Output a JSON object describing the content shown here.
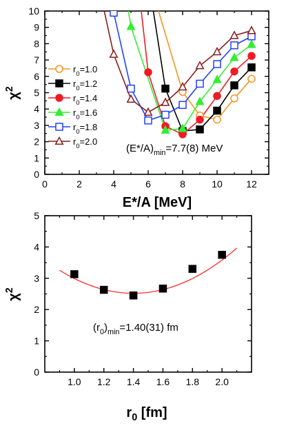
{
  "chart_data": [
    {
      "type": "line",
      "xlabel": "E*/A [MeV]",
      "ylabel": "χ2",
      "xlim": [
        0,
        13
      ],
      "ylim": [
        0,
        10
      ],
      "xticks": [
        0,
        2,
        4,
        6,
        8,
        10,
        12
      ],
      "yticks": [
        0,
        1,
        2,
        3,
        4,
        5,
        6,
        7,
        8,
        9,
        10
      ],
      "grid": false,
      "legend_position": "left",
      "annotation": "(E*/A)min=7.7(8) MeV",
      "series": [
        {
          "name": "r0=1.0",
          "color": "#f7941d",
          "marker": "circle-open",
          "x": [
            6.6,
            8,
            9,
            10,
            11,
            12
          ],
          "y": [
            10,
            5.05,
            3.6,
            3.35,
            4.65,
            5.85
          ]
        },
        {
          "name": "r0=1.2",
          "color": "#000000",
          "marker": "square-filled",
          "x": [
            6.3,
            7,
            8,
            9,
            10,
            11,
            12
          ],
          "y": [
            10,
            5.25,
            2.65,
            2.75,
            3.9,
            5.45,
            6.55
          ]
        },
        {
          "name": "r0=1.4",
          "color": "#ed1c24",
          "marker": "circle-filled",
          "x": [
            5.6,
            6,
            7,
            8,
            9,
            10,
            11,
            12
          ],
          "y": [
            10,
            6.25,
            2.95,
            2.45,
            3.35,
            4.8,
            6.3,
            7.25
          ]
        },
        {
          "name": "r0=1.6",
          "color": "#33ee33",
          "marker": "triangle-filled",
          "x": [
            4.85,
            5,
            7,
            8,
            9,
            10,
            11,
            12
          ],
          "y": [
            10,
            9.05,
            2.7,
            2.8,
            4.45,
            5.8,
            7.15,
            7.95
          ]
        },
        {
          "name": "r0=1.8",
          "color": "#1f3fff",
          "marker": "square-open",
          "x": [
            4,
            5,
            6,
            7,
            8,
            9,
            10,
            11,
            12
          ],
          "y": [
            9.9,
            5.25,
            3.3,
            3.65,
            4.25,
            5.55,
            6.75,
            7.9,
            8.45
          ]
        },
        {
          "name": "r0=2.0",
          "color": "#8b1a1a",
          "marker": "triangle-open",
          "x": [
            3.45,
            4,
            5,
            6,
            7,
            8,
            9,
            10,
            11,
            12
          ],
          "y": [
            10,
            7.35,
            4.6,
            3.8,
            4.4,
            5.35,
            6.65,
            7.5,
            8.5,
            8.8
          ]
        }
      ]
    },
    {
      "type": "scatter",
      "xlabel": "r0 [fm]",
      "ylabel": "χ2",
      "xlim": [
        0.8,
        2.2
      ],
      "ylim": [
        0,
        5
      ],
      "xticks": [
        1.0,
        1.2,
        1.4,
        1.6,
        1.8,
        2.0
      ],
      "yticks": [
        0,
        1,
        2,
        3,
        4,
        5
      ],
      "grid": false,
      "annotation": "(r0)min=1.40(31) fm",
      "series": [
        {
          "marker": "square-filled",
          "color": "#000000",
          "x": [
            1.0,
            1.2,
            1.4,
            1.6,
            1.8,
            2.0
          ],
          "y": [
            3.13,
            2.63,
            2.45,
            2.67,
            3.3,
            3.75
          ]
        }
      ],
      "fit": {
        "type": "parabola",
        "color": "#ff2a2a",
        "x_range": [
          0.9,
          2.1
        ],
        "vertex_x": 1.4,
        "vertex_y": 2.52,
        "curvature": 2.95
      }
    }
  ]
}
